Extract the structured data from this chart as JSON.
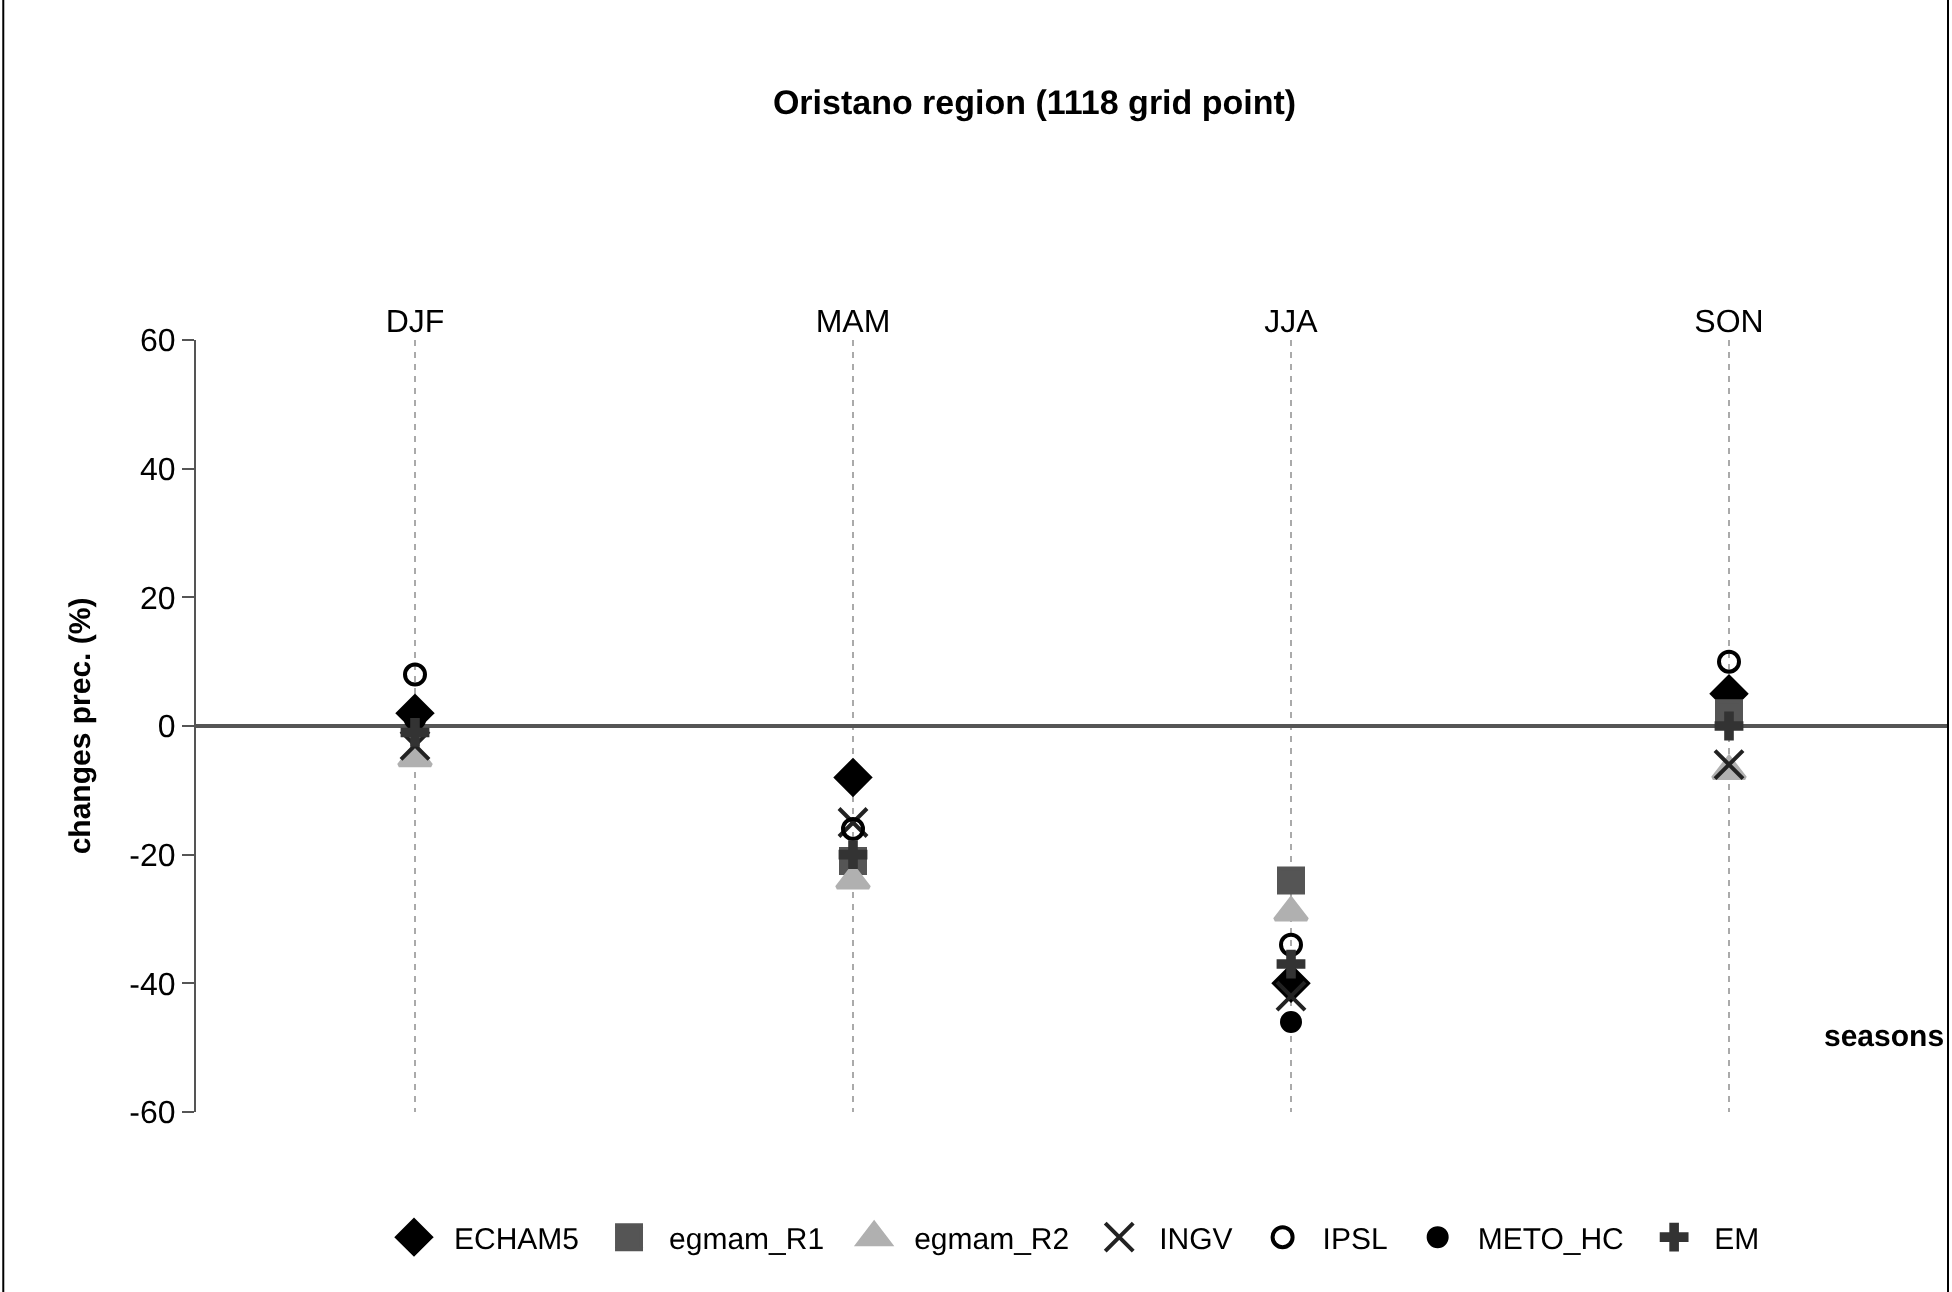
{
  "chart_data": {
    "type": "scatter",
    "title": "Oristano region (1118 grid point)",
    "xlabel": "seasons",
    "ylabel": "changes prec. (%)",
    "categories": [
      "DJF",
      "MAM",
      "JJA",
      "SON"
    ],
    "ylim": [
      -60,
      60
    ],
    "yticks": [
      -60,
      -40,
      -20,
      0,
      20,
      40,
      60
    ],
    "grid": "x",
    "legend": "bottom",
    "series": [
      {
        "name": "ECHAM5",
        "color": "#000000",
        "marker": "diamond",
        "values": [
          2,
          -8,
          -40,
          5
        ]
      },
      {
        "name": "egmam_R1",
        "color": "#555555",
        "marker": "square",
        "values": [
          null,
          -21,
          -24,
          2
        ]
      },
      {
        "name": "egmam_R2",
        "color": "#b0b0b0",
        "marker": "triangle",
        "values": [
          -5,
          -24,
          -29,
          -7
        ]
      },
      {
        "name": "INGV",
        "color": "#222222",
        "marker": "x",
        "values": [
          -3,
          -15,
          -42,
          -6
        ]
      },
      {
        "name": "IPSL",
        "color": "#000000",
        "marker": "open_circle",
        "values": [
          8,
          -16,
          -34,
          10
        ]
      },
      {
        "name": "METO_HC",
        "color": "#000000",
        "marker": "circle",
        "values": [
          1,
          null,
          -46,
          null
        ]
      },
      {
        "name": "EM",
        "color": "#333333",
        "marker": "cross",
        "values": [
          -1,
          -20,
          -37,
          0
        ]
      }
    ]
  }
}
